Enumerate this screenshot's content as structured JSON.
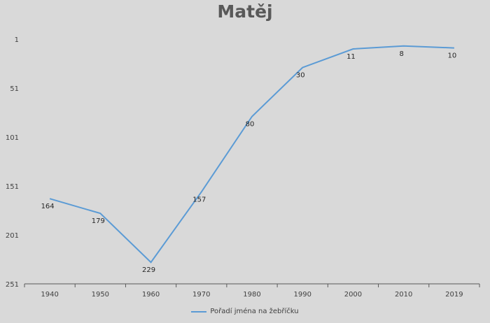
{
  "chart_data": {
    "type": "line",
    "title": "Matěj",
    "xlabel": "",
    "ylabel": "",
    "y_reversed": true,
    "ylim": [
      1,
      251
    ],
    "yticks": [
      1,
      51,
      101,
      151,
      201,
      251
    ],
    "grid": false,
    "legend_position": "bottom",
    "line_color": "#5b9bd5",
    "categories": [
      "1940",
      "1950",
      "1960",
      "1970",
      "1980",
      "1990",
      "2000",
      "2010",
      "2019"
    ],
    "series": [
      {
        "name": "Pořadí jména na žebříčku",
        "values": [
          164,
          179,
          229,
          157,
          80,
          30,
          11,
          8,
          10
        ]
      }
    ]
  }
}
